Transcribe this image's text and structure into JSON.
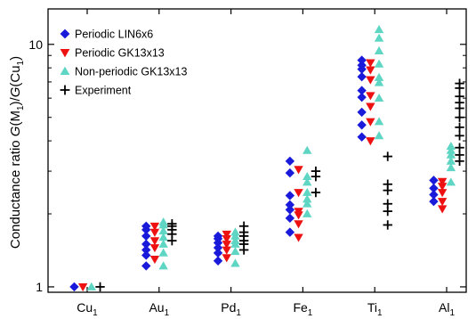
{
  "chart_data": {
    "type": "scatter",
    "ylabel_parts": {
      "pre": "Conductance ratio ",
      "g1": "G",
      "m_open": "(M",
      "m_sub": "1",
      "m_close": ")/",
      "g2": "G",
      "cu_open": "(Cu",
      "cu_sub": "1",
      "cu_close": ")"
    },
    "y_scale": "log",
    "ylim": [
      0.95,
      14
    ],
    "y_ticks": [
      {
        "value": 1,
        "label": "1"
      },
      {
        "value": 10,
        "label": "10"
      }
    ],
    "categories": [
      {
        "base": "Cu",
        "sub": "1"
      },
      {
        "base": "Au",
        "sub": "1"
      },
      {
        "base": "Pd",
        "sub": "1"
      },
      {
        "base": "Fe",
        "sub": "1"
      },
      {
        "base": "Ti",
        "sub": "1"
      },
      {
        "base": "Al",
        "sub": "1"
      }
    ],
    "legend_position": "top-left",
    "grid": false,
    "series": [
      {
        "name": "Periodic LIN6x6",
        "marker": "diamond",
        "color": "#1a1adb",
        "offset": -0.18,
        "values": [
          [
            1.0
          ],
          [
            1.22,
            1.35,
            1.42,
            1.5,
            1.62,
            1.72,
            1.78
          ],
          [
            1.28,
            1.38,
            1.45,
            1.52,
            1.58,
            1.62
          ],
          [
            1.68,
            1.92,
            2.08,
            2.18,
            2.38,
            2.95,
            3.3
          ],
          [
            4.15,
            4.65,
            5.25,
            6.05,
            6.45,
            7.35,
            7.9,
            8.2,
            8.6
          ],
          [
            2.25,
            2.4,
            2.55,
            2.75
          ]
        ]
      },
      {
        "name": "Periodic GK13x13",
        "marker": "triangle-down",
        "color": "#ee1111",
        "offset": -0.06,
        "values": [
          [
            1.0
          ],
          [
            1.3,
            1.45,
            1.55,
            1.68,
            1.78
          ],
          [
            1.32,
            1.42,
            1.5,
            1.58,
            1.65
          ],
          [
            1.6,
            1.82,
            1.98,
            2.05,
            2.45,
            3.05
          ],
          [
            4.0,
            4.8,
            5.55,
            6.15,
            7.15,
            7.85,
            8.4
          ],
          [
            2.1,
            2.25,
            2.45,
            2.6,
            2.72
          ]
        ]
      },
      {
        "name": "Non-periodic GK13x13",
        "marker": "triangle-up",
        "color": "#5fd6c4",
        "offset": 0.06,
        "values": [
          [
            1.0
          ],
          [
            1.22,
            1.38,
            1.5,
            1.6,
            1.7,
            1.8,
            1.85
          ],
          [
            1.25,
            1.4,
            1.5,
            1.55,
            1.62,
            1.68
          ],
          [
            2.0,
            2.2,
            2.3,
            2.45,
            2.7,
            2.85,
            3.65
          ],
          [
            4.2,
            4.8,
            6.0,
            6.95,
            7.3,
            8.3,
            9.4,
            10.6,
            11.5
          ],
          [
            2.7,
            3.1,
            3.3,
            3.5,
            3.65,
            3.8
          ]
        ]
      },
      {
        "name": "Experiment",
        "marker": "plus",
        "color": "#000000",
        "offset": 0.18,
        "values": [
          [
            1.0
          ],
          [
            1.55,
            1.65,
            1.72,
            1.78,
            1.82
          ],
          [
            1.42,
            1.5,
            1.55,
            1.62,
            1.68,
            1.78
          ],
          [
            2.45,
            2.85,
            3.0
          ],
          [
            1.8,
            2.05,
            2.2,
            2.5,
            2.65,
            3.45
          ],
          [
            3.3,
            3.5,
            3.75,
            4.2,
            4.55,
            5.0,
            5.45,
            5.75,
            6.1,
            6.6,
            6.9
          ]
        ]
      }
    ]
  }
}
